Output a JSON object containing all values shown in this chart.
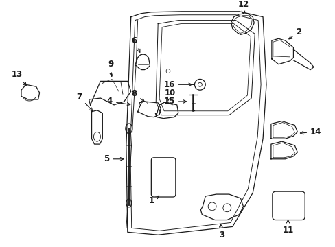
{
  "bg_color": "#ffffff",
  "line_color": "#1a1a1a",
  "fig_width": 4.89,
  "fig_height": 3.6,
  "dpi": 100,
  "label_fontsize": 8.5,
  "lw": 0.9
}
